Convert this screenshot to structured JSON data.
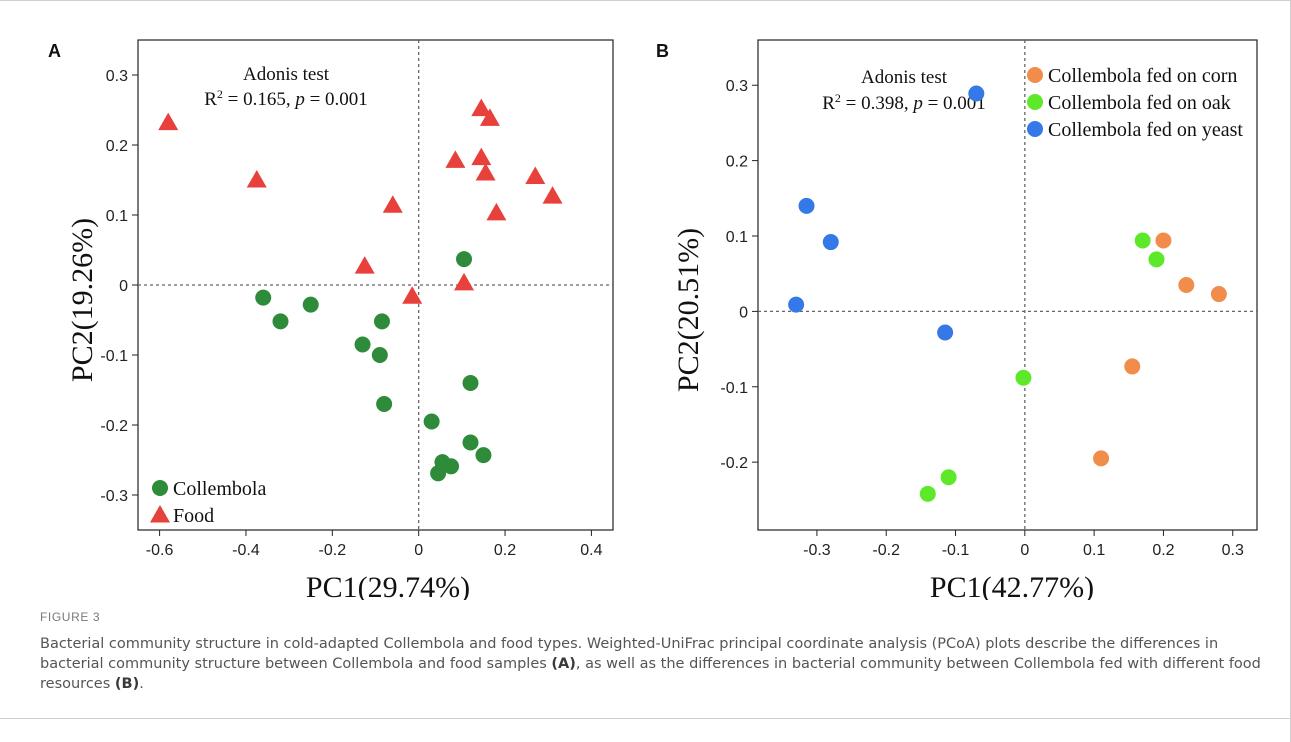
{
  "figure": {
    "label": "FIGURE 3",
    "caption": {
      "part1": "Bacterial community structure in cold-adapted Collembola and food types. Weighted-UniFrac principal coordinate analysis (PCoA) plots describe the differences in bacterial community structure between Collembola and food samples ",
      "ref_a": "(A)",
      "part2": ", as well as the differences in bacterial community between Collembola fed with different food resources ",
      "ref_b": "(B)",
      "part3": "."
    }
  },
  "chart_data": [
    {
      "panel": "A",
      "type": "scatter",
      "xlabel": "PC1(29.74%)",
      "ylabel": "PC2(19.26%)",
      "xlim": [
        -0.65,
        0.45
      ],
      "ylim": [
        -0.35,
        0.35
      ],
      "xticks": [
        -0.6,
        -0.4,
        -0.2,
        0,
        0.2,
        0.4
      ],
      "xtick_labels": [
        "-0.6",
        "-0.4",
        "-0.2",
        "0",
        "0.2",
        "0.4"
      ],
      "yticks": [
        -0.3,
        -0.2,
        -0.1,
        0,
        0.1,
        0.2,
        0.3
      ],
      "ytick_labels": [
        "-0.3",
        "-0.2",
        "-0.1",
        "0",
        "0.1",
        "0.2",
        "0.3"
      ],
      "zero_lines": true,
      "annotation": {
        "title": "Adonis test",
        "r2": "0.165",
        "p": "0.001"
      },
      "legend_position": "bottom-left",
      "series": [
        {
          "name": "Collembola",
          "marker": "circle",
          "color": "#2e8b3a",
          "points": [
            [
              -0.36,
              -0.018
            ],
            [
              -0.32,
              -0.052
            ],
            [
              -0.25,
              -0.028
            ],
            [
              -0.13,
              -0.085
            ],
            [
              -0.085,
              -0.052
            ],
            [
              -0.09,
              -0.1
            ],
            [
              -0.08,
              -0.17
            ],
            [
              0.03,
              -0.195
            ],
            [
              0.105,
              0.037
            ],
            [
              0.12,
              -0.14
            ],
            [
              0.12,
              -0.225
            ],
            [
              0.15,
              -0.243
            ],
            [
              0.055,
              -0.253
            ],
            [
              0.075,
              -0.259
            ],
            [
              0.045,
              -0.269
            ]
          ]
        },
        {
          "name": "Food",
          "marker": "triangle",
          "color": "#e8403a",
          "points": [
            [
              -0.58,
              0.232
            ],
            [
              -0.375,
              0.15
            ],
            [
              -0.06,
              0.114
            ],
            [
              -0.125,
              0.027
            ],
            [
              -0.015,
              -0.016
            ],
            [
              0.085,
              0.178
            ],
            [
              0.105,
              0.003
            ],
            [
              0.145,
              0.252
            ],
            [
              0.165,
              0.238
            ],
            [
              0.145,
              0.182
            ],
            [
              0.155,
              0.16
            ],
            [
              0.18,
              0.103
            ],
            [
              0.27,
              0.155
            ],
            [
              0.31,
              0.127
            ]
          ]
        }
      ]
    },
    {
      "panel": "B",
      "type": "scatter",
      "xlabel": "PC1(42.77%)",
      "ylabel": "PC2(20.51%)",
      "xlim": [
        -0.385,
        0.335
      ],
      "ylim": [
        -0.29,
        0.36
      ],
      "xticks": [
        -0.3,
        -0.2,
        -0.1,
        0,
        0.1,
        0.2,
        0.3
      ],
      "xtick_labels": [
        "-0.3",
        "-0.2",
        "-0.1",
        "0",
        "0.1",
        "0.2",
        "0.3"
      ],
      "yticks": [
        -0.2,
        -0.1,
        0,
        0.1,
        0.2,
        0.3
      ],
      "ytick_labels": [
        "-0.2",
        "-0.1",
        "0",
        "0.1",
        "0.2",
        "0.3"
      ],
      "zero_lines": true,
      "annotation": {
        "title": "Adonis test",
        "r2": "0.398",
        "p": "0.001"
      },
      "legend_position": "top-right",
      "series": [
        {
          "name": "Collembola fed on corn",
          "marker": "circle",
          "color": "#f28c4a",
          "points": [
            [
              0.2,
              0.094
            ],
            [
              0.233,
              0.035
            ],
            [
              0.28,
              0.023
            ],
            [
              0.155,
              -0.073
            ],
            [
              0.11,
              -0.195
            ]
          ]
        },
        {
          "name": "Collembola fed on oak",
          "marker": "circle",
          "color": "#5ee82a",
          "points": [
            [
              0.17,
              0.094
            ],
            [
              0.19,
              0.069
            ],
            [
              -0.002,
              -0.088
            ],
            [
              -0.11,
              -0.22
            ],
            [
              -0.14,
              -0.242
            ]
          ]
        },
        {
          "name": "Collembola fed on yeast",
          "marker": "circle",
          "color": "#3578e8",
          "points": [
            [
              -0.07,
              0.289
            ],
            [
              -0.315,
              0.14
            ],
            [
              -0.28,
              0.092
            ],
            [
              -0.33,
              0.009
            ],
            [
              -0.115,
              -0.028
            ]
          ]
        }
      ]
    }
  ]
}
